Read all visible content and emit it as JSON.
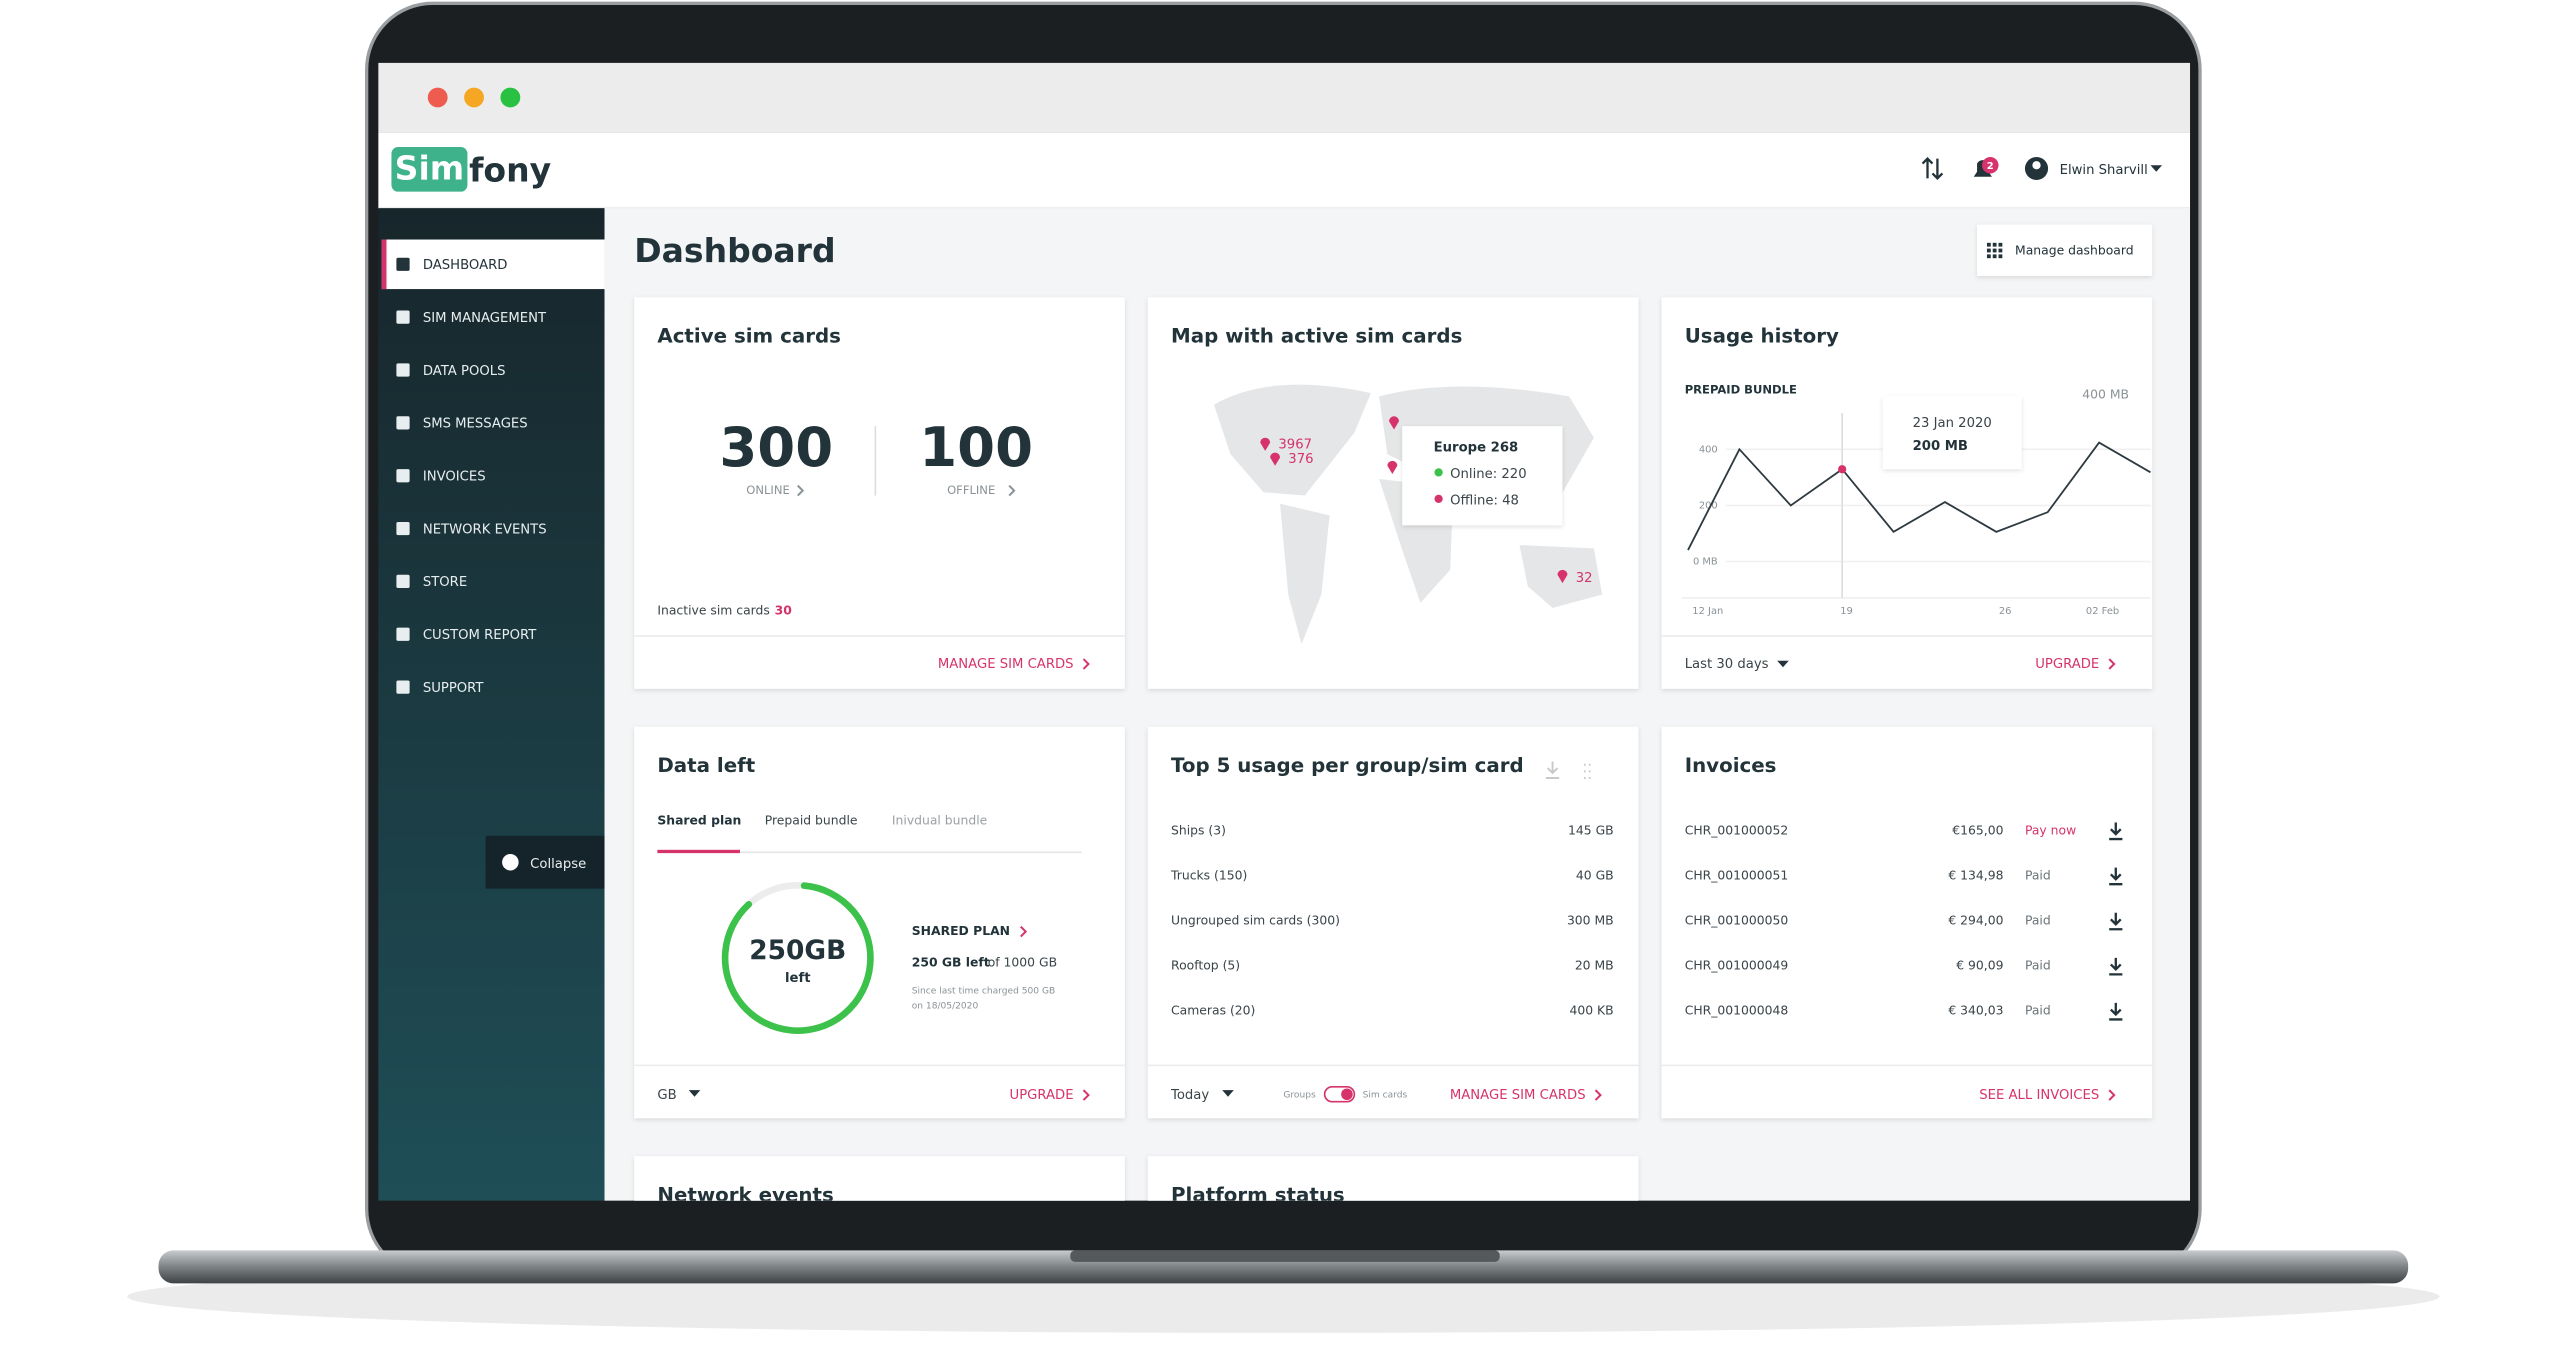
{
  "header": {
    "logo_parts": [
      "Sim",
      "fony"
    ],
    "notification_count": "2",
    "user": "Elwin Sharvill"
  },
  "sidebar": {
    "items": [
      "DASHBOARD",
      "SIM MANAGEMENT",
      "DATA POOLS",
      "SMS MESSAGES",
      "INVOICES",
      "NETWORK EVENTS",
      "STORE",
      "CUSTOM REPORT",
      "SUPPORT"
    ],
    "collapse": "Collapse"
  },
  "page": {
    "title": "Dashboard",
    "manage_button": "Manage dashboard"
  },
  "cards": {
    "active_sim": {
      "title": "Active sim cards",
      "online_count": "300",
      "online_label": "ONLINE",
      "offline_count": "100",
      "offline_label": "OFFLINE",
      "inactive_label": "Inactive sim cards",
      "inactive_count": "30",
      "action": "MANAGE SIM CARDS"
    },
    "map": {
      "title": "Map with active sim cards",
      "markers": [
        "3967",
        "376",
        "32"
      ],
      "tooltip": {
        "title": "Europe 268",
        "online": "Online: 220",
        "offline": "Offline: 48"
      }
    },
    "usage": {
      "title": "Usage history",
      "subtitle": "PREPAID BUNDLE",
      "max_label": "400 MB",
      "chart": {
        "type": "line",
        "values": [
          41,
          400,
          200,
          329,
          106,
          212,
          106,
          176,
          424,
          318
        ],
        "ylim": [
          0,
          400
        ],
        "yticks": [
          {
            "value": 0,
            "label": "0 MB"
          },
          200,
          400
        ],
        "xticks": [
          "12 Jan",
          "19",
          "26",
          "02 Feb"
        ],
        "color": "#2e3a40"
      },
      "tooltip": {
        "date": "23 Jan 2020",
        "value": "200 MB"
      },
      "period": "Last 30 days",
      "action": "UPGRADE"
    },
    "data_left": {
      "title": "Data left",
      "tabs": [
        "Shared plan",
        "Prepaid bundle",
        "Inivdual bundle"
      ],
      "gauge_value": "250GB",
      "gauge_caption": "left",
      "plan_title": "SHARED PLAN",
      "plan_left": "250 GB left",
      "plan_total": "of 1000 GB",
      "notes": [
        "Since last time charged 500 GB",
        "on 18/05/2020"
      ],
      "unit": "GB",
      "action": "UPGRADE"
    },
    "top5": {
      "title": "Top 5 usage per group/sim card",
      "rows": [
        [
          "Ships (3)",
          "145 GB"
        ],
        [
          "Trucks (150)",
          "40 GB"
        ],
        [
          "Ungrouped sim cards (300)",
          "300 MB"
        ],
        [
          "Rooftop (5)",
          "20 MB"
        ],
        [
          "Cameras (20)",
          "400 KB"
        ]
      ],
      "period": "Today",
      "toggle_left": "Groups",
      "toggle_right": "Sim cards",
      "action": "MANAGE SIM CARDS"
    },
    "invoices": {
      "title": "Invoices",
      "rows": [
        [
          "CHR_001000052",
          "€165,00",
          "Pay now"
        ],
        [
          "CHR_001000051",
          "€ 134,98",
          "Paid"
        ],
        [
          "CHR_001000050",
          "€ 294,00",
          "Paid"
        ],
        [
          "CHR_001000049",
          "€ 90,09",
          "Paid"
        ],
        [
          "CHR_001000048",
          "€ 340,03",
          "Paid"
        ]
      ],
      "action": "SEE ALL INVOICES"
    },
    "network_events": {
      "title": "Network events"
    },
    "platform_status": {
      "title": "Platform status"
    }
  }
}
